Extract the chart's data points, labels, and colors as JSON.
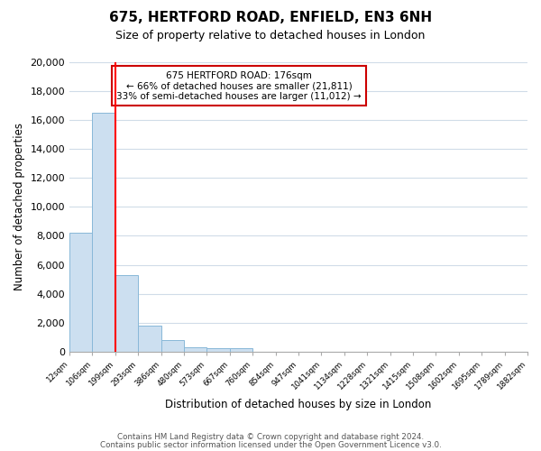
{
  "title": "675, HERTFORD ROAD, ENFIELD, EN3 6NH",
  "subtitle": "Size of property relative to detached houses in London",
  "xlabel": "Distribution of detached houses by size in London",
  "ylabel": "Number of detached properties",
  "bar_color": "#ccdff0",
  "bar_edge_color": "#88b8d8",
  "bar_heights": [
    8200,
    16500,
    5300,
    1800,
    800,
    300,
    250,
    250,
    0,
    0,
    0,
    0,
    0,
    0,
    0,
    0,
    0,
    0,
    0,
    0
  ],
  "bin_labels": [
    "12sqm",
    "106sqm",
    "199sqm",
    "293sqm",
    "386sqm",
    "480sqm",
    "573sqm",
    "667sqm",
    "760sqm",
    "854sqm",
    "947sqm",
    "1041sqm",
    "1134sqm",
    "1228sqm",
    "1321sqm",
    "1415sqm",
    "1508sqm",
    "1602sqm",
    "1695sqm",
    "1789sqm",
    "1882sqm"
  ],
  "red_line_x": 2,
  "annotation_title": "675 HERTFORD ROAD: 176sqm",
  "annotation_line1": "← 66% of detached houses are smaller (21,811)",
  "annotation_line2": "33% of semi-detached houses are larger (11,012) →",
  "annotation_box_color": "#ffffff",
  "annotation_box_edge_color": "#cc0000",
  "ylim": [
    0,
    20000
  ],
  "yticks": [
    0,
    2000,
    4000,
    6000,
    8000,
    10000,
    12000,
    14000,
    16000,
    18000,
    20000
  ],
  "footer1": "Contains HM Land Registry data © Crown copyright and database right 2024.",
  "footer2": "Contains public sector information licensed under the Open Government Licence v3.0.",
  "background_color": "#ffffff",
  "grid_color": "#d0dce8"
}
